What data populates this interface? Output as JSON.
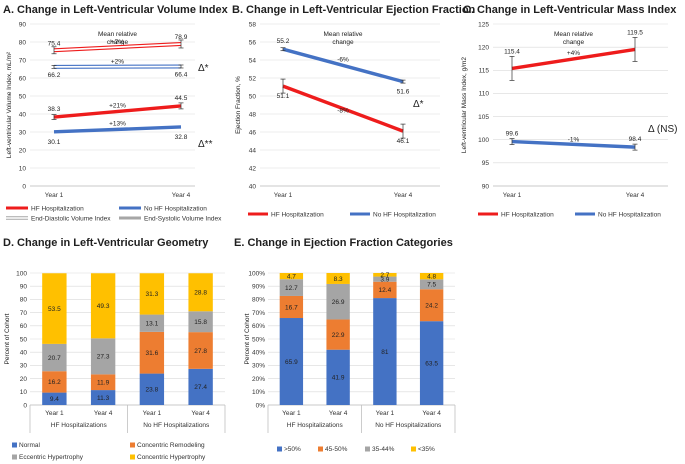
{
  "chart_data": [
    {
      "id": "A",
      "type": "line",
      "title": "A. Change in Left-Ventricular Volume Index",
      "ylabel": "Left-ventricular Volume Index, mL/m²",
      "categories": [
        "Year 1",
        "Year 4"
      ],
      "ylim": [
        0,
        90
      ],
      "yticks": [
        0,
        10,
        20,
        30,
        40,
        50,
        60,
        70,
        80,
        90
      ],
      "header": "Mean relative change",
      "series": [
        {
          "name": "HF Hospitalization",
          "group": "hf",
          "measure": "edv",
          "values": [
            75.4,
            78.9
          ],
          "labels": [
            "75.4",
            "78.9"
          ],
          "change": "+7%"
        },
        {
          "name": "No HF Hospitalization",
          "group": "nohf",
          "measure": "edv",
          "values": [
            66.2,
            66.4
          ],
          "labels": [
            "66.2",
            "66.4"
          ],
          "change": "+2%"
        },
        {
          "name": "HF Hospitalization",
          "group": "hf",
          "measure": "esv",
          "values": [
            38.3,
            44.5
          ],
          "labels": [
            "38.3",
            "44.5"
          ],
          "change": "+21%"
        },
        {
          "name": "No HF Hospitalization",
          "group": "nohf",
          "measure": "esv",
          "values": [
            30.1,
            32.8
          ],
          "labels": [
            "30.1",
            "32.8"
          ],
          "change": "+13%"
        }
      ],
      "significance": [
        "Δ*",
        "Δ**"
      ],
      "legend": [
        "HF Hospitalization",
        "No HF Hospitalization",
        "End-Diastolic Volume Index",
        "End-Systolic Volume Index"
      ]
    },
    {
      "id": "B",
      "type": "line",
      "title": "B. Change in Left-Ventricular Ejection Fraction",
      "ylabel": "Ejection Fraction, %",
      "categories": [
        "Year 1",
        "Year 4"
      ],
      "ylim": [
        40,
        58
      ],
      "yticks": [
        40,
        42,
        44,
        46,
        48,
        50,
        52,
        54,
        56,
        58
      ],
      "header": "Mean relative change",
      "series": [
        {
          "name": "No HF Hospitalization",
          "group": "nohf",
          "values": [
            55.2,
            51.6
          ],
          "labels": [
            "55.2",
            "51.6"
          ],
          "change": "-6%"
        },
        {
          "name": "HF Hospitalization",
          "group": "hf",
          "values": [
            51.1,
            46.1
          ],
          "labels": [
            "51.1",
            "46.1"
          ],
          "change": "-8%"
        }
      ],
      "significance": [
        "Δ*"
      ],
      "legend": [
        "HF Hospitalization",
        "No HF Hospitalization"
      ]
    },
    {
      "id": "C",
      "type": "line",
      "title": "C. Change in Left-Ventricular Mass Index",
      "ylabel": "Left-ventricular Mass Index, g/m2",
      "categories": [
        "Year 1",
        "Year 4"
      ],
      "ylim": [
        90,
        125
      ],
      "yticks": [
        90,
        95,
        100,
        105,
        110,
        115,
        120,
        125
      ],
      "header": "Mean relative change",
      "series": [
        {
          "name": "HF Hospitalization",
          "group": "hf",
          "values": [
            115.4,
            119.5
          ],
          "labels": [
            "115.4",
            "119.5"
          ],
          "change": "+4%"
        },
        {
          "name": "No HF Hospitalization",
          "group": "nohf",
          "values": [
            99.6,
            98.4
          ],
          "labels": [
            "99.6",
            "98.4"
          ],
          "change": "-1%"
        }
      ],
      "significance": [
        "Δ (NS)"
      ],
      "legend": [
        "HF Hospitalization",
        "No HF Hospitalization"
      ]
    },
    {
      "id": "D",
      "type": "bar",
      "stacked": true,
      "title": "D. Change in Left-Ventricular Geometry",
      "ylabel": "Percent of Cohort",
      "ylim": [
        0,
        100
      ],
      "yticks": [
        0,
        10,
        20,
        30,
        40,
        50,
        60,
        70,
        80,
        90,
        100
      ],
      "categories": [
        "Year 1",
        "Year 4",
        "Year 1",
        "Year 4"
      ],
      "groups": [
        "HF Hospitalizations",
        "No HF Hospitalizations"
      ],
      "series": [
        {
          "name": "Normal",
          "color": "#4472c4",
          "values": [
            9.4,
            11.3,
            23.8,
            27.4
          ]
        },
        {
          "name": "Concentric Remodeling",
          "color": "#ed7d31",
          "values": [
            16.2,
            11.9,
            31.6,
            27.8
          ]
        },
        {
          "name": "Eccentric Hypertrophy",
          "color": "#a5a5a5",
          "values": [
            20.7,
            27.3,
            13.1,
            15.8
          ]
        },
        {
          "name": "Concentric Hypertrophy",
          "color": "#ffc000",
          "values": [
            53.5,
            49.3,
            31.3,
            28.8
          ]
        }
      ]
    },
    {
      "id": "E",
      "type": "bar",
      "stacked": true,
      "title": "E. Change in Ejection Fraction Categories",
      "ylabel": "Percent of Cohort",
      "ylim": [
        0,
        100
      ],
      "yticks": [
        "0%",
        "10%",
        "20%",
        "30%",
        "40%",
        "50%",
        "60%",
        "70%",
        "80%",
        "90%",
        "100%"
      ],
      "categories": [
        "Year 1",
        "Year 4",
        "Year 1",
        "Year 4"
      ],
      "groups": [
        "HF Hospitalizations",
        "No HF Hospitalizations"
      ],
      "series": [
        {
          "name": ">50%",
          "color": "#4472c4",
          "values": [
            65.9,
            41.9,
            81,
            63.5
          ]
        },
        {
          "name": "45-50%",
          "color": "#ed7d31",
          "values": [
            16.7,
            22.9,
            12.4,
            24.2
          ]
        },
        {
          "name": "35-44%",
          "color": "#a5a5a5",
          "values": [
            12.7,
            26.9,
            3.9,
            7.5
          ]
        },
        {
          "name": "<35%",
          "color": "#ffc000",
          "values": [
            4.7,
            8.3,
            2.7,
            4.8
          ]
        }
      ]
    }
  ],
  "colors": {
    "hf": "#ee1c1c",
    "nohf": "#4472c4",
    "grey": "#a6a6a6",
    "edv_fill": "#ffffff",
    "esv_fill": "#4472c4"
  }
}
